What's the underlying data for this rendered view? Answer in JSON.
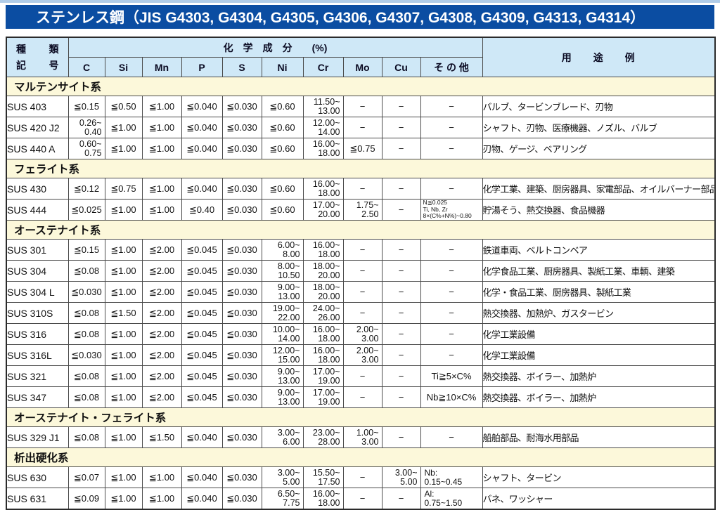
{
  "page": {
    "title": "ステンレス鋼（JIS G4303, G4304, G4305, G4306, G4307, G4308, G4309, G4313, G4314）"
  },
  "colors": {
    "title_bar": "#0b4da2",
    "header_bg": "#cfe8f7",
    "section_bg": "#fcf8da",
    "code_bg": "#cdeafb",
    "accent_strip": "#b0cce8"
  },
  "table": {
    "header": {
      "kind_top": [
        "種",
        "類"
      ],
      "kind_bottom": [
        "記",
        "号"
      ],
      "composition": "化　学　成　分　　(%)",
      "usage": "用　　途　　例",
      "elements": [
        "C",
        "Si",
        "Mn",
        "P",
        "S",
        "Ni",
        "Cr",
        "Mo",
        "Cu",
        "そ の 他"
      ]
    },
    "sections": [
      {
        "name": "マルテンサイト系",
        "rows": [
          {
            "code": "SUS 403",
            "vals": [
              "≦0.15",
              "≦0.50",
              "≦1.00",
              "≦0.040",
              "≦0.030",
              "≦0.60",
              [
                "11.50~",
                "13.00"
              ],
              "−",
              "−",
              "−"
            ],
            "usage": "バルブ、タービンブレード、刃物"
          },
          {
            "code": "SUS 420 J2",
            "vals": [
              [
                "0.26~",
                "0.40"
              ],
              "≦1.00",
              "≦1.00",
              "≦0.040",
              "≦0.030",
              "≦0.60",
              [
                "12.00~",
                "14.00"
              ],
              "−",
              "−",
              "−"
            ],
            "usage": "シャフト、刃物、医療機器、ノズル、バルブ"
          },
          {
            "code": "SUS 440 A",
            "vals": [
              [
                "0.60~",
                "0.75"
              ],
              "≦1.00",
              "≦1.00",
              "≦0.040",
              "≦0.030",
              "≦0.60",
              [
                "16.00~",
                "18.00"
              ],
              "≦0.75",
              "−",
              "−"
            ],
            "usage": "刃物、ゲージ、ベアリング"
          }
        ]
      },
      {
        "name": "フェライト系",
        "rows": [
          {
            "code": "SUS 430",
            "vals": [
              "≦0.12",
              "≦0.75",
              "≦1.00",
              "≦0.040",
              "≦0.030",
              "≦0.60",
              [
                "16.00~",
                "18.00"
              ],
              "−",
              "−",
              "−"
            ],
            "usage": "化学工業、建築、厨房器具、家電部品、オイルバーナー部品"
          },
          {
            "code": "SUS 444",
            "vals": [
              "≦0.025",
              "≦1.00",
              "≦1.00",
              "≦0.40",
              "≦0.030",
              "≦0.60",
              [
                "17.00~",
                "20.00"
              ],
              [
                "1.75~",
                "2.50"
              ],
              "−",
              [
                "N≦0.025",
                "Ti, Nb, Zr",
                "8×(C%+N%)~0.80"
              ]
            ],
            "usage": "貯湯そう、熱交換器、食品機器"
          }
        ]
      },
      {
        "name": "オーステナイト系",
        "rows": [
          {
            "code": "SUS 301",
            "vals": [
              "≦0.15",
              "≦1.00",
              "≦2.00",
              "≦0.045",
              "≦0.030",
              [
                "6.00~",
                "8.00"
              ],
              [
                "16.00~",
                "18.00"
              ],
              "−",
              "−",
              "−"
            ],
            "usage": "鉄道車両、ベルトコンベア"
          },
          {
            "code": "SUS 304",
            "vals": [
              "≦0.08",
              "≦1.00",
              "≦2.00",
              "≦0.045",
              "≦0.030",
              [
                "8.00~",
                "10.50"
              ],
              [
                "18.00~",
                "20.00"
              ],
              "−",
              "−",
              "−"
            ],
            "usage": "化学食品工業、厨房器具、製紙工業、車輌、建築"
          },
          {
            "code": "SUS 304 L",
            "vals": [
              "≦0.030",
              "≦1.00",
              "≦2.00",
              "≦0.045",
              "≦0.030",
              [
                "9.00~",
                "13.00"
              ],
              [
                "18.00~",
                "20.00"
              ],
              "−",
              "−",
              "−"
            ],
            "usage": "化学・食品工業、厨房器具、製紙工業"
          },
          {
            "code": "SUS 310S",
            "vals": [
              "≦0.08",
              "≦1.50",
              "≦2.00",
              "≦0.045",
              "≦0.030",
              [
                "19.00~",
                "22.00"
              ],
              [
                "24.00~",
                "26.00"
              ],
              "−",
              "−",
              "−"
            ],
            "usage": "熱交換器、加熱炉、ガスタービン"
          },
          {
            "code": "SUS 316",
            "vals": [
              "≦0.08",
              "≦1.00",
              "≦2.00",
              "≦0.045",
              "≦0.030",
              [
                "10.00~",
                "14.00"
              ],
              [
                "16.00~",
                "18.00"
              ],
              [
                "2.00~",
                "3.00"
              ],
              "−",
              "−"
            ],
            "usage": "化学工業設備"
          },
          {
            "code": "SUS 316L",
            "vals": [
              "≦0.030",
              "≦1.00",
              "≦2.00",
              "≦0.045",
              "≦0.030",
              [
                "12.00~",
                "15.00"
              ],
              [
                "16.00~",
                "18.00"
              ],
              [
                "2.00~",
                "3.00"
              ],
              "−",
              "−"
            ],
            "usage": "化学工業設備"
          },
          {
            "code": "SUS 321",
            "vals": [
              "≦0.08",
              "≦1.00",
              "≦2.00",
              "≦0.045",
              "≦0.030",
              [
                "9.00~",
                "13.00"
              ],
              [
                "17.00~",
                "19.00"
              ],
              "−",
              "−",
              "Ti≧5×C%"
            ],
            "usage": "熱交換器、ボイラー、加熱炉"
          },
          {
            "code": "SUS 347",
            "vals": [
              "≦0.08",
              "≦1.00",
              "≦2.00",
              "≦0.045",
              "≦0.030",
              [
                "9.00~",
                "13.00"
              ],
              [
                "17.00~",
                "19.00"
              ],
              "−",
              "−",
              "Nb≧10×C%"
            ],
            "usage": "熱交換器、ボイラー、加熱炉"
          }
        ]
      },
      {
        "name": "オーステナイト・フェライト系",
        "rows": [
          {
            "code": "SUS 329 J1",
            "vals": [
              "≦0.08",
              "≦1.00",
              "≦1.50",
              "≦0.040",
              "≦0.030",
              [
                "3.00~",
                "6.00"
              ],
              [
                "23.00~",
                "28.00"
              ],
              [
                "1.00~",
                "3.00"
              ],
              "−",
              "−"
            ],
            "usage": "船舶部品、耐海水用部品"
          }
        ]
      },
      {
        "name": "析出硬化系",
        "rows": [
          {
            "code": "SUS 630",
            "vals": [
              "≦0.07",
              "≦1.00",
              "≦1.00",
              "≦0.040",
              "≦0.030",
              [
                "3.00~",
                "5.00"
              ],
              [
                "15.50~",
                "17.50"
              ],
              "−",
              [
                "3.00~",
                "5.00"
              ],
              [
                "Nb:",
                "0.15~0.45"
              ]
            ],
            "usage": "シャフト、タービン"
          },
          {
            "code": "SUS 631",
            "vals": [
              "≦0.09",
              "≦1.00",
              "≦1.00",
              "≦0.040",
              "≦0.030",
              [
                "6.50~",
                "7.75"
              ],
              [
                "16.00~",
                "18.00"
              ],
              "−",
              "−",
              [
                "Al:",
                "0.75~1.50"
              ]
            ],
            "usage": "バネ、ワッシャー"
          }
        ]
      }
    ]
  }
}
